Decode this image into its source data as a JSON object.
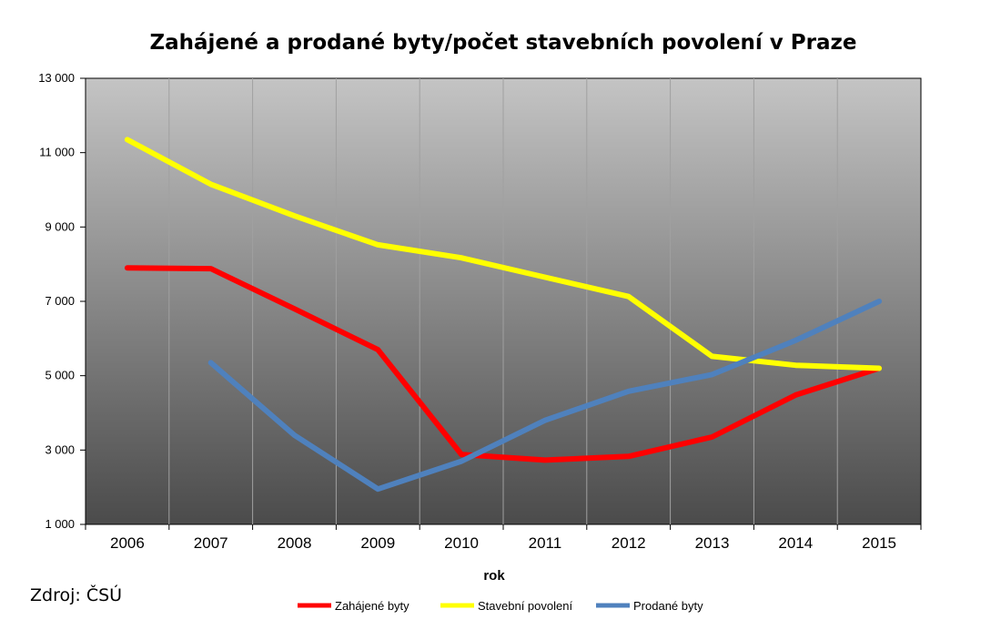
{
  "chart_data": {
    "type": "line",
    "title": "Zahájené a prodané byty/počet stavebních povolení v Praze",
    "xlabel": "rok",
    "ylabel": "",
    "categories": [
      "2006",
      "2007",
      "2008",
      "2009",
      "2010",
      "2011",
      "2012",
      "2013",
      "2014",
      "2015"
    ],
    "ylim": [
      1000,
      13000
    ],
    "yticks": [
      1000,
      3000,
      5000,
      7000,
      9000,
      11000,
      13000
    ],
    "ytick_labels": [
      "1 000",
      "3 000",
      "5 000",
      "7 000",
      "9 000",
      "11 000",
      "13 000"
    ],
    "grid": "vertical",
    "legend_position": "bottom",
    "series": [
      {
        "name": "Zahájené byty",
        "color": "#ff0000",
        "values": [
          7900,
          7880,
          6800,
          5700,
          2880,
          2730,
          2830,
          3350,
          4480,
          5200
        ]
      },
      {
        "name": "Stavební povolení",
        "color": "#ffff00",
        "values": [
          11350,
          10150,
          9300,
          8520,
          8170,
          7650,
          7130,
          5520,
          5280,
          5200
        ]
      },
      {
        "name": "Prodané byty",
        "color": "#4f81bd",
        "values": [
          null,
          5350,
          3400,
          1950,
          2700,
          3800,
          4580,
          5030,
          5950,
          7000
        ]
      }
    ]
  },
  "footer": {
    "source": "Zdroj: ČSÚ"
  }
}
